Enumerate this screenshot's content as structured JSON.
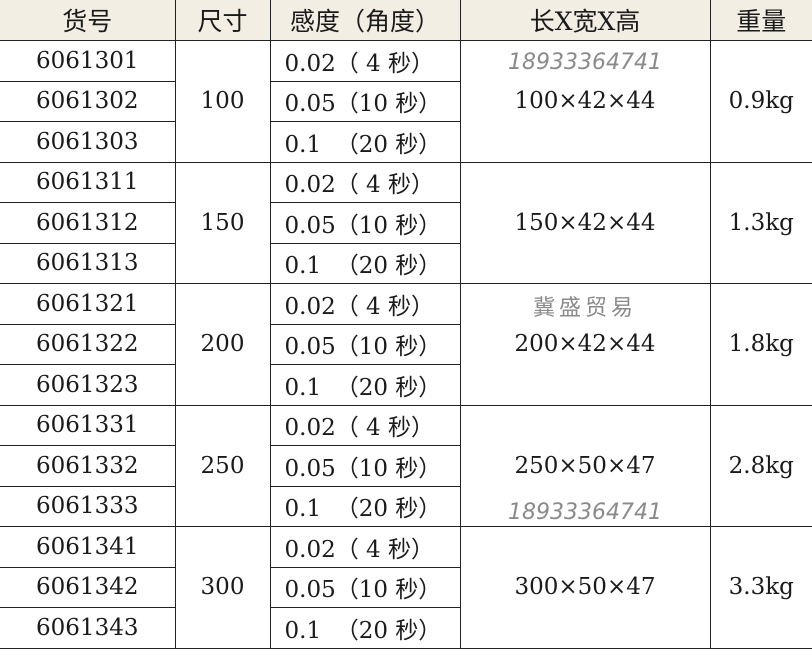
{
  "headers": [
    "货号",
    "尺寸",
    "感度（角度）",
    "长X宽X高",
    "重量"
  ],
  "groups": [
    {
      "size": "100",
      "dims": "100×42×44",
      "weight": "0.9kg",
      "items": [
        [
          "6061301",
          "0.02（ 4 秒）"
        ],
        [
          "6061302",
          "0.05（10 秒）"
        ],
        [
          "6061303",
          "0.1  （20 秒）"
        ]
      ]
    },
    {
      "size": "150",
      "dims": "150×42×44",
      "weight": "1.3kg",
      "items": [
        [
          "6061311",
          "0.02（ 4 秒）"
        ],
        [
          "6061312",
          "0.05（10 秒）"
        ],
        [
          "6061313",
          "0.1  （20 秒）"
        ]
      ]
    },
    {
      "size": "200",
      "dims": "200×42×44",
      "weight": "1.8kg",
      "items": [
        [
          "6061321",
          "0.02（ 4 秒）"
        ],
        [
          "6061322",
          "0.05（10 秒）"
        ],
        [
          "6061323",
          "0.1  （20 秒）"
        ]
      ]
    },
    {
      "size": "250",
      "dims": "250×50×47",
      "weight": "2.8kg",
      "items": [
        [
          "6061331",
          "0.02（ 4 秒）"
        ],
        [
          "6061332",
          "0.05（10 秒）"
        ],
        [
          "6061333",
          "0.1  （20 秒）"
        ]
      ]
    },
    {
      "size": "300",
      "dims": "300×50×47",
      "weight": "3.3kg",
      "items": [
        [
          "6061341",
          "0.02（ 4 秒）"
        ],
        [
          "6061342",
          "0.05（10 秒）"
        ],
        [
          "6061343",
          "0.1  （20 秒）"
        ]
      ]
    }
  ],
  "watermark": {
    "phone": "18933364741",
    "company": "冀盛贸易"
  },
  "colors": {
    "header_bg": "#f2eee4",
    "border": "#222222"
  }
}
